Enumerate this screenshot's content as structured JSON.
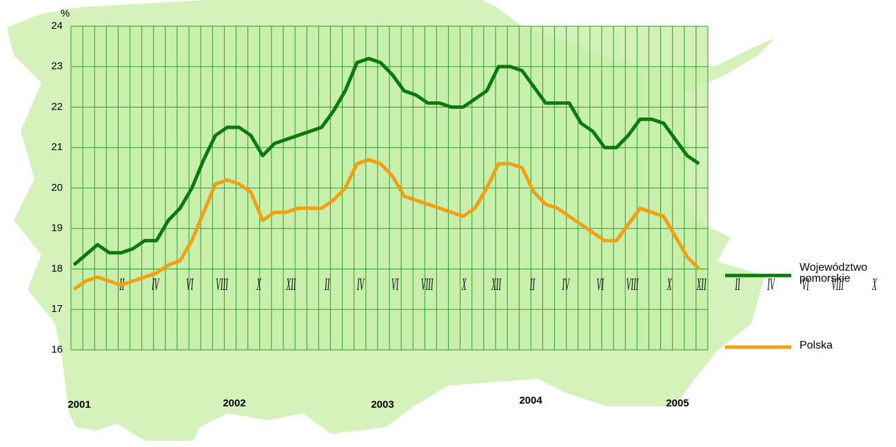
{
  "chart_data": {
    "type": "line",
    "y_label": "%",
    "categories": [
      null,
      "II",
      null,
      "IV",
      null,
      "VI",
      null,
      "VIII",
      null,
      "X",
      null,
      "XII",
      null,
      "II",
      null,
      "IV",
      null,
      "VI",
      null,
      "VIII",
      null,
      "X",
      null,
      "XII",
      null,
      "II",
      null,
      "IV",
      null,
      "VI",
      null,
      "VIII",
      null,
      "X",
      null,
      "XII",
      null,
      "II",
      null,
      "IV",
      null,
      "VI",
      null,
      "VIII",
      null,
      "X",
      null,
      "XII",
      null,
      "II",
      null,
      "IV",
      null,
      "VI"
    ],
    "year_labels": [
      "2001",
      "2002",
      "2003",
      "2004",
      "2005"
    ],
    "series": [
      {
        "name": "Województwo pomorskie",
        "color": "#0a7a0a",
        "values": [
          18.1,
          18.35,
          18.6,
          18.4,
          18.4,
          18.5,
          18.7,
          18.7,
          19.2,
          19.5,
          20.0,
          20.7,
          21.3,
          21.5,
          21.5,
          21.3,
          20.8,
          21.1,
          21.2,
          21.3,
          21.4,
          21.5,
          21.9,
          22.4,
          23.1,
          23.2,
          23.1,
          22.8,
          22.4,
          22.3,
          22.1,
          22.1,
          22.0,
          22.0,
          22.2,
          22.4,
          23.0,
          23.0,
          22.9,
          22.5,
          22.1,
          22.1,
          22.1,
          21.6,
          21.4,
          21.0,
          21.0,
          21.3,
          21.7,
          21.7,
          21.6,
          21.2,
          20.8,
          20.6
        ]
      },
      {
        "name": "Polska",
        "color": "#f0a010",
        "values": [
          17.5,
          17.7,
          17.8,
          17.7,
          17.6,
          17.7,
          17.8,
          17.9,
          18.1,
          18.2,
          18.7,
          19.4,
          20.1,
          20.2,
          20.1,
          19.9,
          19.2,
          19.4,
          19.4,
          19.5,
          19.5,
          19.5,
          19.7,
          20.0,
          20.6,
          20.7,
          20.6,
          20.3,
          19.8,
          19.7,
          19.6,
          19.5,
          19.4,
          19.3,
          19.5,
          20.0,
          20.6,
          20.6,
          20.5,
          19.9,
          19.6,
          19.5,
          19.3,
          19.1,
          18.9,
          18.7,
          18.7,
          19.1,
          19.5,
          19.4,
          19.3,
          18.8,
          18.3,
          18.0
        ]
      }
    ],
    "ylim": [
      16,
      24
    ],
    "yticks": [
      16,
      17,
      18,
      19,
      20,
      21,
      22,
      23,
      24
    ],
    "grid": true
  }
}
